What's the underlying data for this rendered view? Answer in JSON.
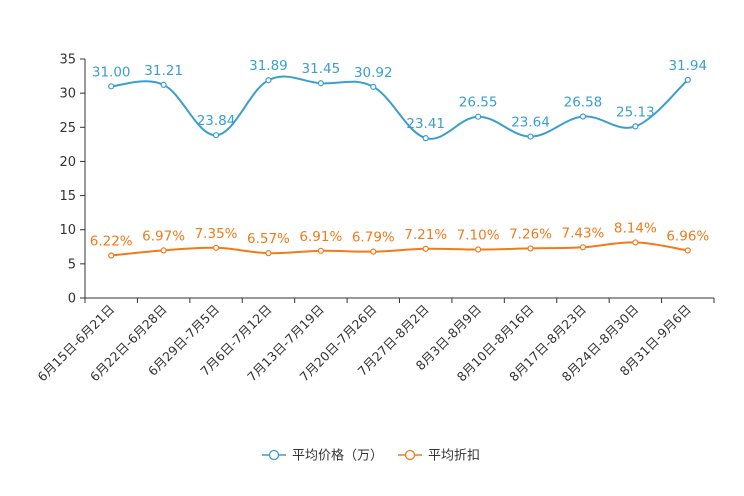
{
  "chart_data": {
    "type": "line",
    "categories": [
      "6月15日-6月21日",
      "6月22日-6月28日",
      "6月29日-7月5日",
      "7月6日-7月12日",
      "7月13日-7月19日",
      "7月20日-7月26日",
      "7月27日-8月2日",
      "8月3日-8月9日",
      "8月10日-8月16日",
      "8月17日-8月23日",
      "8月24日-8月30日",
      "8月31日-9月6日"
    ],
    "ylim": [
      0,
      35
    ],
    "yticks": [
      0,
      5,
      10,
      15,
      20,
      25,
      30,
      35
    ],
    "series": [
      {
        "name": "平均价格（万）",
        "color": "#3a9fd0",
        "values": [
          31.0,
          31.21,
          23.84,
          31.89,
          31.45,
          30.92,
          23.41,
          26.55,
          23.64,
          26.58,
          25.13,
          31.94
        ],
        "labels": [
          "31.00",
          "31.21",
          "23.84",
          "31.89",
          "31.45",
          "30.92",
          "23.41",
          "26.55",
          "23.64",
          "26.58",
          "25.13",
          "31.94"
        ]
      },
      {
        "name": "平均折扣",
        "color": "#f27a1a",
        "values": [
          6.22,
          6.97,
          7.35,
          6.57,
          6.91,
          6.79,
          7.21,
          7.1,
          7.26,
          7.43,
          8.14,
          6.96
        ],
        "labels": [
          "6.22%",
          "6.97%",
          "7.35%",
          "6.57%",
          "6.91%",
          "6.79%",
          "7.21%",
          "7.10%",
          "7.26%",
          "7.43%",
          "8.14%",
          "6.96%"
        ]
      }
    ],
    "xlabel": "",
    "ylabel": "",
    "legend_position": "bottom"
  }
}
